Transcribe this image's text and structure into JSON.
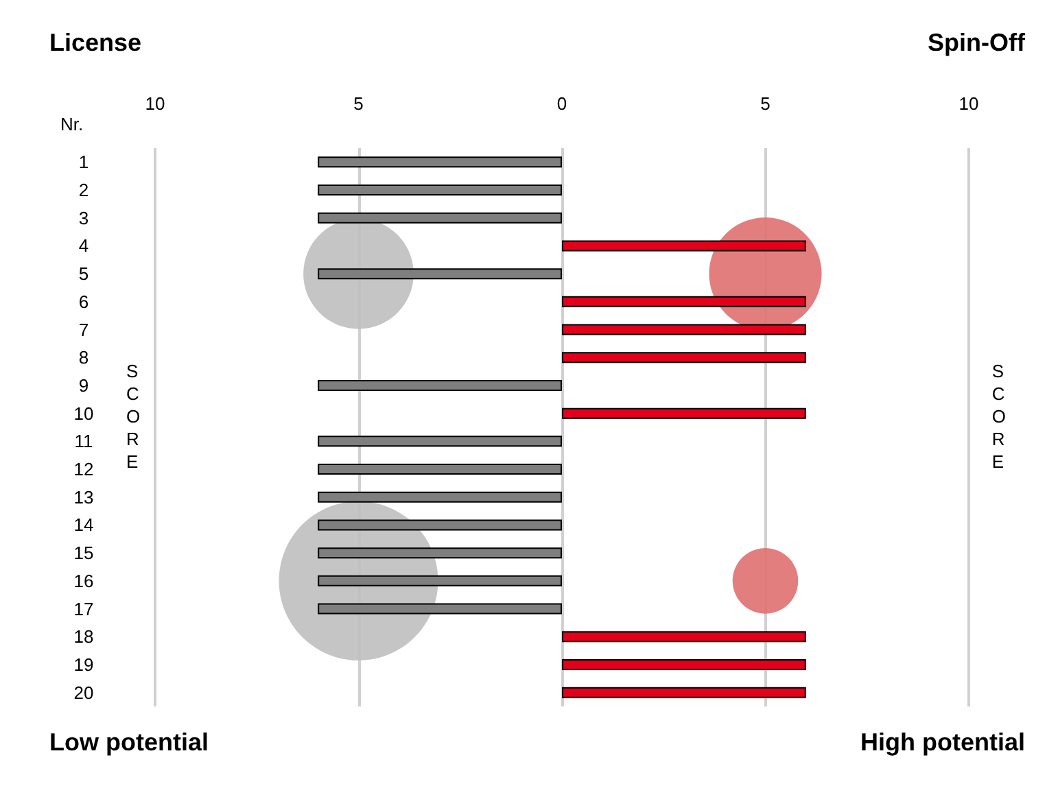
{
  "chart_data": {
    "type": "bar",
    "orientation": "horizontal",
    "stacked": true,
    "ylabel": "Nr.",
    "categories": [
      "1",
      "2",
      "3",
      "4",
      "5",
      "6",
      "7",
      "8",
      "9",
      "10",
      "11",
      "12",
      "13",
      "14",
      "15",
      "16",
      "17",
      "18",
      "19",
      "20"
    ],
    "series": [
      {
        "color": "#7f7f7f",
        "values": [
          -6,
          -6,
          -6,
          null,
          -6,
          null,
          null,
          null,
          -6,
          null,
          -6,
          -6,
          -6,
          -6,
          -6,
          -6,
          -6,
          null,
          null,
          null
        ]
      },
      {
        "color": "#e3001b",
        "values": [
          null,
          null,
          null,
          6,
          null,
          6,
          6,
          6,
          null,
          6,
          null,
          null,
          null,
          null,
          null,
          null,
          null,
          6,
          6,
          6
        ]
      },
      {
        "type": "bubble",
        "color": "#bfbfbf",
        "x": [
          "5",
          "16"
        ],
        "values": [
          -5,
          -5
        ],
        "sizes": [
          0.48,
          1
        ]
      },
      {
        "type": "bubble",
        "color": "#e07070",
        "x": [
          "5",
          "16"
        ],
        "values": [
          5,
          5
        ],
        "sizes": [
          0.5,
          0.17
        ]
      }
    ],
    "xlim": [
      -10,
      10
    ],
    "xticks": [
      {
        "value": -10,
        "label": "10"
      },
      {
        "value": -5,
        "label": "5"
      },
      0,
      5,
      10
    ],
    "grid": "x",
    "annotations": [
      "License",
      "Spin-Off",
      "Low potential",
      "High potential",
      "SCORE",
      "SCORE"
    ]
  }
}
